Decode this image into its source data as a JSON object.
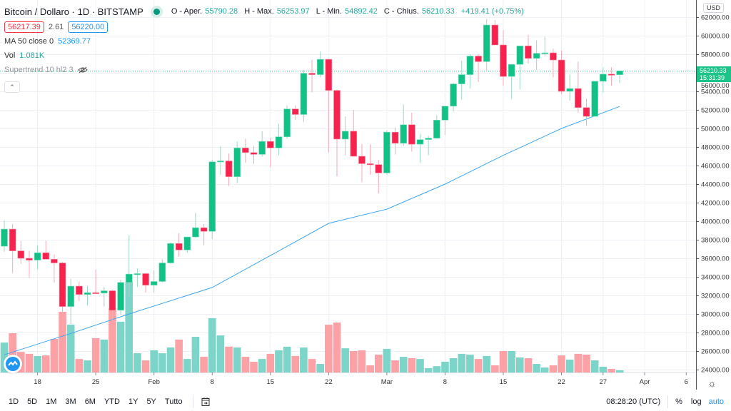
{
  "header": {
    "title": "Bitcoin / Dollaro · 1D · BITSTAMP",
    "market_status": "open",
    "ohlc": {
      "open_label": "O - Aper.",
      "open": "55790.28",
      "high_label": "H - Max.",
      "high": "56253.97",
      "low_label": "L - Min.",
      "low": "54892.42",
      "close_label": "C - Chius.",
      "close": "56210.33",
      "change": "+419.41 (+0.75%)"
    },
    "bid": "56217.39",
    "spread": "2.61",
    "ask": "56220.00"
  },
  "indicators": {
    "ma_label": "MA 50 close 0",
    "ma_value": "52369.77",
    "vol_label": "Vol",
    "vol_value": "1.081K",
    "supertrend_label": "Supertrend 10 hl2 3",
    "supertrend_hidden": true
  },
  "price_axis": {
    "currency": "USD",
    "min": 23000,
    "max": 63000,
    "ticks": [
      "62000.00",
      "60000.00",
      "58000.00",
      "56000.00",
      "54000.00",
      "52000.00",
      "50000.00",
      "48000.00",
      "46000.00",
      "44000.00",
      "42000.00",
      "40000.00",
      "38000.00",
      "36000.00",
      "34000.00",
      "32000.00",
      "30000.00",
      "28000.00",
      "26000.00",
      "24000.00"
    ],
    "last_price": "56210.33",
    "countdown": "15:31:39"
  },
  "time_axis": {
    "ticks": [
      {
        "label": "18",
        "date": "Jan 18"
      },
      {
        "label": "25",
        "date": "Jan 25"
      },
      {
        "label": "Feb",
        "date": "Feb 1"
      },
      {
        "label": "8",
        "date": "Feb 8"
      },
      {
        "label": "15",
        "date": "Feb 15"
      },
      {
        "label": "22",
        "date": "Feb 22"
      },
      {
        "label": "Mar",
        "date": "Mar 1"
      },
      {
        "label": "8",
        "date": "Mar 8"
      },
      {
        "label": "15",
        "date": "Mar 15"
      },
      {
        "label": "22",
        "date": "Mar 22"
      },
      {
        "label": "27",
        "date": "Mar 27"
      },
      {
        "label": "Apr",
        "date": "Apr 1"
      },
      {
        "label": "6",
        "date": "Apr 6"
      }
    ]
  },
  "colors": {
    "up": "#12c185",
    "down": "#f7234f",
    "vol_up": "#7dd5ca",
    "vol_down": "#fca1a6",
    "ma": "#3ea6f0",
    "grid": "#eef2f6",
    "accent": "#2196f3"
  },
  "chart_data": {
    "type": "candlestick",
    "columns": [
      "date",
      "open",
      "high",
      "low",
      "close",
      "volume_k"
    ],
    "candles": [
      [
        "Jan 14",
        37300,
        40100,
        36700,
        39150,
        15.1
      ],
      [
        "Jan 15",
        39150,
        39700,
        34400,
        36800,
        19.8
      ],
      [
        "Jan 16",
        36800,
        37900,
        35400,
        36000,
        10.4
      ],
      [
        "Jan 17",
        36000,
        36800,
        33900,
        35800,
        9.4
      ],
      [
        "Jan 18",
        35800,
        37400,
        34800,
        36600,
        8.3
      ],
      [
        "Jan 19",
        36600,
        37900,
        35900,
        35900,
        8.6
      ],
      [
        "Jan 20",
        35900,
        36400,
        33400,
        35500,
        16.9
      ],
      [
        "Jan 21",
        35500,
        35600,
        30000,
        30800,
        30.6
      ],
      [
        "Jan 22",
        30800,
        33800,
        28900,
        33000,
        24.1
      ],
      [
        "Jan 23",
        33000,
        33500,
        31400,
        32100,
        6.8
      ],
      [
        "Jan 24",
        32100,
        33000,
        30900,
        32300,
        6.1
      ],
      [
        "Jan 25",
        32300,
        34800,
        32200,
        32250,
        17.3
      ],
      [
        "Jan 26",
        32250,
        32900,
        30800,
        32500,
        16.6
      ],
      [
        "Jan 27",
        32500,
        32600,
        29200,
        30400,
        32.4
      ],
      [
        "Jan 28",
        30400,
        33700,
        29900,
        33400,
        25.6
      ],
      [
        "Jan 29",
        33400,
        38500,
        31900,
        34300,
        45.7
      ],
      [
        "Jan 30",
        34300,
        34900,
        32900,
        34350,
        9.7
      ],
      [
        "Jan 31",
        34350,
        34400,
        32300,
        33100,
        6.1
      ],
      [
        "Feb 1",
        33100,
        34700,
        32300,
        33500,
        11.2
      ],
      [
        "Feb 2",
        33500,
        35900,
        33400,
        35500,
        9.7
      ],
      [
        "Feb 3",
        35500,
        37700,
        35400,
        37600,
        12.6
      ],
      [
        "Feb 4",
        37600,
        38700,
        36200,
        36900,
        16.6
      ],
      [
        "Feb 5",
        36900,
        38300,
        36600,
        38300,
        6.8
      ],
      [
        "Feb 6",
        38300,
        40900,
        38200,
        39300,
        18.0
      ],
      [
        "Feb 7",
        39300,
        39700,
        37400,
        38900,
        7.9
      ],
      [
        "Feb 8",
        38900,
        46600,
        38100,
        46400,
        27.4
      ],
      [
        "Feb 9",
        46400,
        48100,
        45000,
        46500,
        18.7
      ],
      [
        "Feb 10",
        46500,
        47300,
        43800,
        44800,
        13.0
      ],
      [
        "Feb 11",
        44800,
        48600,
        44100,
        47900,
        12.6
      ],
      [
        "Feb 12",
        47900,
        48900,
        46300,
        47400,
        7.9
      ],
      [
        "Feb 13",
        47400,
        48100,
        46200,
        47200,
        5.4
      ],
      [
        "Feb 14",
        47200,
        49700,
        47000,
        48600,
        6.8
      ],
      [
        "Feb 15",
        48600,
        49000,
        45800,
        47900,
        9.4
      ],
      [
        "Feb 16",
        47900,
        50500,
        47100,
        49100,
        11.2
      ],
      [
        "Feb 17",
        49100,
        52500,
        48900,
        52100,
        13.0
      ],
      [
        "Feb 18",
        52100,
        52500,
        50900,
        51500,
        8.3
      ],
      [
        "Feb 19",
        51500,
        56300,
        50700,
        55950,
        12.6
      ],
      [
        "Feb 20",
        55950,
        57400,
        53900,
        55800,
        6.8
      ],
      [
        "Feb 21",
        55800,
        58300,
        55500,
        57450,
        4.3
      ],
      [
        "Feb 22",
        57450,
        57500,
        47400,
        54100,
        24.1
      ],
      [
        "Feb 23",
        54100,
        54200,
        44850,
        48850,
        25.2
      ],
      [
        "Feb 24",
        48850,
        51300,
        47100,
        49700,
        12.2
      ],
      [
        "Feb 25",
        49700,
        52000,
        47000,
        47000,
        10.8
      ],
      [
        "Feb 26",
        47000,
        48300,
        44200,
        46200,
        11.2
      ],
      [
        "Feb 27",
        46200,
        48300,
        45000,
        46100,
        3.6
      ],
      [
        "Feb 28",
        46100,
        46600,
        43000,
        45200,
        9.0
      ],
      [
        "Mar 1",
        45200,
        49800,
        45000,
        49600,
        11.9
      ],
      [
        "Mar 2",
        49600,
        50100,
        47200,
        48400,
        6.1
      ],
      [
        "Mar 3",
        48400,
        52600,
        48100,
        50400,
        7.9
      ],
      [
        "Mar 4",
        50400,
        51700,
        47500,
        48300,
        7.2
      ],
      [
        "Mar 5",
        48300,
        49400,
        46300,
        48800,
        6.8
      ],
      [
        "Mar 6",
        48800,
        49200,
        47100,
        48950,
        2.2
      ],
      [
        "Mar 7",
        48950,
        51400,
        48900,
        50900,
        3.2
      ],
      [
        "Mar 8",
        50900,
        52400,
        49300,
        52400,
        5.4
      ],
      [
        "Mar 9",
        52400,
        54900,
        51800,
        54800,
        7.2
      ],
      [
        "Mar 10",
        54800,
        57300,
        53100,
        55800,
        9.4
      ],
      [
        "Mar 11",
        55800,
        58000,
        54300,
        57800,
        9.0
      ],
      [
        "Mar 12",
        57800,
        58000,
        55000,
        57200,
        6.8
      ],
      [
        "Mar 13",
        57200,
        61800,
        56100,
        61150,
        8.3
      ],
      [
        "Mar 14",
        61150,
        61700,
        59000,
        59000,
        3.6
      ],
      [
        "Mar 15",
        59000,
        60600,
        54600,
        55600,
        10.8
      ],
      [
        "Mar 16",
        55600,
        56900,
        53200,
        56900,
        10.8
      ],
      [
        "Mar 17",
        56900,
        58900,
        54200,
        58900,
        7.6
      ],
      [
        "Mar 18",
        58900,
        60100,
        57000,
        57550,
        7.2
      ],
      [
        "Mar 19",
        57550,
        59500,
        56300,
        58100,
        4.3
      ],
      [
        "Mar 20",
        58100,
        59900,
        57800,
        58150,
        2.5
      ],
      [
        "Mar 21",
        58150,
        58600,
        55500,
        57380,
        3.6
      ],
      [
        "Mar 22",
        57380,
        58400,
        53700,
        54000,
        8.6
      ],
      [
        "Mar 23",
        54000,
        55800,
        53000,
        54300,
        6.5
      ],
      [
        "Mar 24",
        54300,
        57200,
        51700,
        52250,
        9.4
      ],
      [
        "Mar 25",
        52250,
        53200,
        50300,
        51300,
        9.0
      ],
      [
        "Mar 26",
        51300,
        55100,
        51300,
        55080,
        6.1
      ],
      [
        "Mar 27",
        55080,
        56600,
        53850,
        55850,
        2.9
      ],
      [
        "Mar 28",
        55850,
        56600,
        54600,
        55790,
        1.8
      ],
      [
        "Mar 29",
        55790.28,
        56253.97,
        54892.42,
        56210.33,
        1.081
      ]
    ],
    "ma50": [
      [
        "Jan 14",
        25600
      ],
      [
        "Jan 22",
        27900
      ],
      [
        "Jan 29",
        30000
      ],
      [
        "Feb 8",
        32850
      ],
      [
        "Feb 15",
        36300
      ],
      [
        "Feb 22",
        39770
      ],
      [
        "Mar 1",
        41300
      ],
      [
        "Mar 8",
        44000
      ],
      [
        "Mar 15",
        47100
      ],
      [
        "Mar 22",
        50000
      ],
      [
        "Mar 29",
        52370
      ]
    ],
    "ylim": [
      23000,
      63000
    ],
    "grid": true
  },
  "toolbar": {
    "timeframes": [
      "1D",
      "5D",
      "1M",
      "3M",
      "6M",
      "YTD",
      "1Y",
      "5Y",
      "Tutto"
    ],
    "time": "08:28:20 (UTC)",
    "percent": "%",
    "log": "log",
    "auto": "auto"
  }
}
